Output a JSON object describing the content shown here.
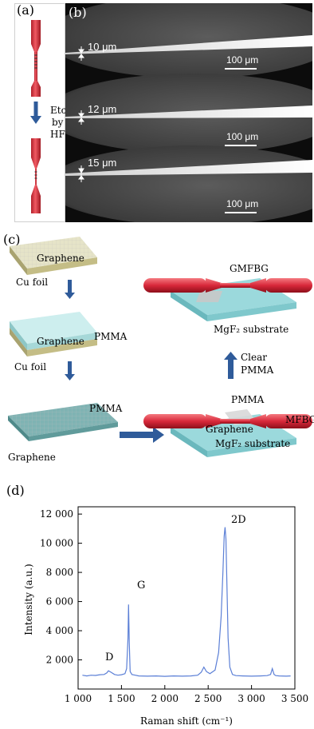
{
  "panel_a": {
    "label": "(a)",
    "etch_lines": [
      "Etch",
      "by",
      "HF"
    ]
  },
  "panel_b": {
    "label": "(b)",
    "frames": [
      {
        "diameter_label": "10 μm",
        "scale_label": "100 μm"
      },
      {
        "diameter_label": "12 μm",
        "scale_label": "100 μm"
      },
      {
        "diameter_label": "15 μm",
        "scale_label": "100 μm"
      }
    ]
  },
  "panel_c": {
    "label": "(c)",
    "texts": {
      "graphene_1": "Graphene",
      "cu_foil_1": "Cu foil",
      "pmma_1": "PMMA",
      "graphene_2": "Graphene",
      "cu_foil_2": "Cu foil",
      "pmma_2": "PMMA",
      "graphene_3": "Graphene",
      "gmfbg": "GMFBG",
      "mgf2_top": "MgF₂ substrate",
      "clear": "Clear",
      "clear_pmma": "PMMA",
      "pmma_bottom": "PMMA",
      "graphene_bottom": "Graphene",
      "mgf2_bottom": "MgF₂ substrate",
      "mfbg": "MFBG"
    }
  },
  "panel_d": {
    "label": "(d)"
  },
  "chart_data": {
    "type": "line",
    "xlabel": "Raman shift (cm⁻¹)",
    "ylabel": "Intensity (a.u.)",
    "xlim": [
      1000,
      3500
    ],
    "ylim": [
      0,
      12500
    ],
    "x_ticks": [
      1000,
      1500,
      2000,
      2500,
      3000,
      3500
    ],
    "x_tick_labels": [
      "1 000",
      "1 500",
      "2 000",
      "2 500",
      "3 000",
      "3 500"
    ],
    "y_ticks": [
      2000,
      4000,
      6000,
      8000,
      10000,
      12000
    ],
    "y_tick_labels": [
      "2 000",
      "4 000",
      "6 000",
      "8 000",
      "10 000",
      "12 000"
    ],
    "annotations": [
      "D",
      "G",
      "2D"
    ],
    "series": [
      {
        "x": [
          1050,
          1100,
          1150,
          1200,
          1250,
          1300,
          1330,
          1350,
          1380,
          1420,
          1460,
          1500,
          1540,
          1560,
          1575,
          1582,
          1590,
          1600,
          1620,
          1660,
          1700,
          1800,
          1900,
          2000,
          2100,
          2200,
          2300,
          2380,
          2420,
          2450,
          2480,
          2520,
          2580,
          2620,
          2650,
          2670,
          2685,
          2695,
          2705,
          2715,
          2730,
          2750,
          2780,
          2820,
          2900,
          3000,
          3100,
          3180,
          3220,
          3240,
          3260,
          3280,
          3320,
          3400,
          3450
        ],
        "y": [
          950,
          900,
          950,
          930,
          980,
          1000,
          1100,
          1250,
          1150,
          1000,
          950,
          980,
          1050,
          1400,
          3500,
          5800,
          3200,
          1200,
          1000,
          950,
          900,
          880,
          900,
          870,
          900,
          880,
          900,
          950,
          1150,
          1500,
          1200,
          1050,
          1300,
          2500,
          5000,
          8000,
          10500,
          11100,
          10300,
          7500,
          3500,
          1500,
          1000,
          920,
          900,
          880,
          900,
          920,
          1000,
          1400,
          1000,
          920,
          900,
          880,
          900
        ]
      }
    ]
  }
}
